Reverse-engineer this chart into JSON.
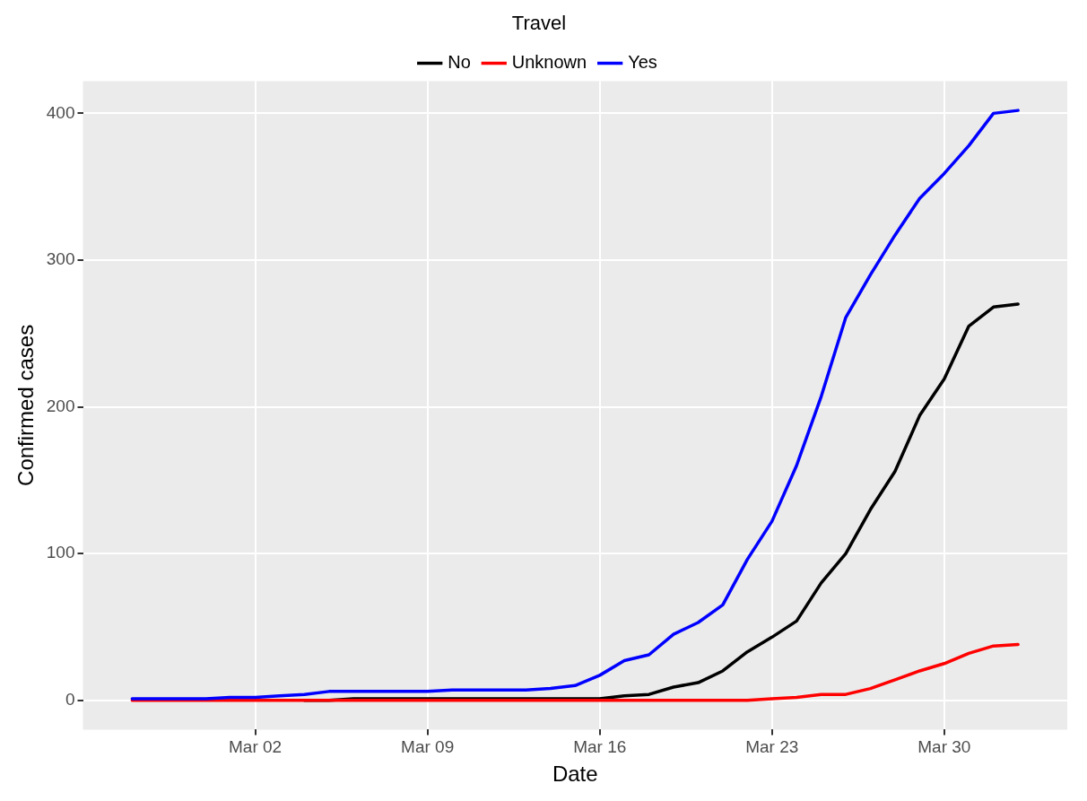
{
  "chart_data": {
    "type": "line",
    "xlabel": "Date",
    "ylabel": "Confirmed cases",
    "legend_title": "Travel",
    "legend": "top",
    "grid": true,
    "marker": "none",
    "line_style": "solid",
    "x": [
      "--02-26",
      "--02-27",
      "--02-28",
      "--02-29",
      "--03-01",
      "--03-02",
      "--03-03",
      "--03-04",
      "--03-05",
      "--03-06",
      "--03-07",
      "--03-08",
      "--03-09",
      "--03-10",
      "--03-11",
      "--03-12",
      "--03-13",
      "--03-14",
      "--03-15",
      "--03-16",
      "--03-17",
      "--03-18",
      "--03-19",
      "--03-20",
      "--03-21",
      "--03-22",
      "--03-23",
      "--03-24",
      "--03-25",
      "--03-26",
      "--03-27",
      "--03-28",
      "--03-29",
      "--03-30",
      "--03-31",
      "--04-01",
      "--04-02"
    ],
    "series": [
      {
        "name": "No",
        "color": "#000000",
        "values": [
          null,
          null,
          null,
          null,
          null,
          null,
          null,
          0,
          0,
          1,
          1,
          1,
          1,
          1,
          1,
          1,
          1,
          1,
          1,
          1,
          3,
          4,
          9,
          12,
          20,
          33,
          43,
          54,
          80,
          100,
          130,
          156,
          194,
          219,
          255,
          268,
          270
        ]
      },
      {
        "name": "Unknown",
        "color": "#ff0000",
        "values": [
          0,
          0,
          0,
          0,
          0,
          0,
          0,
          0,
          0,
          0,
          0,
          0,
          0,
          0,
          0,
          0,
          0,
          0,
          0,
          0,
          0,
          0,
          0,
          0,
          0,
          0,
          1,
          2,
          4,
          4,
          8,
          14,
          20,
          25,
          32,
          37,
          38
        ]
      },
      {
        "name": "Yes",
        "color": "#0000ff",
        "values": [
          1,
          1,
          1,
          1,
          2,
          2,
          3,
          4,
          6,
          6,
          6,
          6,
          6,
          7,
          7,
          7,
          7,
          8,
          10,
          17,
          27,
          31,
          45,
          53,
          65,
          96,
          122,
          160,
          207,
          261,
          290,
          317,
          342,
          359,
          378,
          400,
          402
        ]
      }
    ],
    "xlim": [
      "--02-24",
      "--04-04"
    ],
    "xticks": [
      {
        "value": "--03-02",
        "label": "Mar 02"
      },
      {
        "value": "--03-09",
        "label": "Mar 09"
      },
      {
        "value": "--03-16",
        "label": "Mar 16"
      },
      {
        "value": "--03-23",
        "label": "Mar 23"
      },
      {
        "value": "--03-30",
        "label": "Mar 30"
      }
    ],
    "ylim": [
      -20,
      422
    ],
    "yticks": [
      0,
      100,
      200,
      300,
      400
    ]
  }
}
